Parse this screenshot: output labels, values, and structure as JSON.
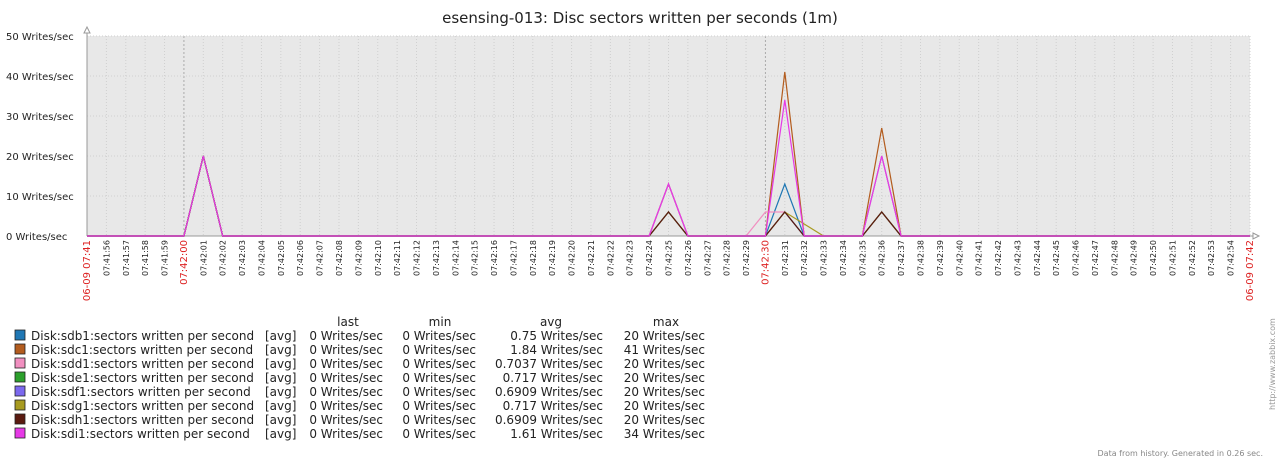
{
  "chart_data": {
    "type": "line",
    "title": "esensing-013: Disc sectors written per seconds (1m)",
    "ylabel_unit": "Writes/sec",
    "ylim": [
      0,
      50
    ],
    "yticks": [
      0,
      10,
      20,
      30,
      40,
      50
    ],
    "y_tick_labels": [
      "0 Writes/sec",
      "10 Writes/sec",
      "20 Writes/sec",
      "30 Writes/sec",
      "40 Writes/sec",
      "50 Writes/sec"
    ],
    "grid": true,
    "x": [
      "07:41:55",
      "07:41:56",
      "07:41:57",
      "07:41:58",
      "07:41:59",
      "07:42:00",
      "07:42:01",
      "07:42:02",
      "07:42:03",
      "07:42:04",
      "07:42:05",
      "07:42:06",
      "07:42:07",
      "07:42:08",
      "07:42:09",
      "07:42:10",
      "07:42:11",
      "07:42:12",
      "07:42:13",
      "07:42:14",
      "07:42:15",
      "07:42:16",
      "07:42:17",
      "07:42:18",
      "07:42:19",
      "07:42:20",
      "07:42:21",
      "07:42:22",
      "07:42:23",
      "07:42:24",
      "07:42:25",
      "07:42:26",
      "07:42:27",
      "07:42:28",
      "07:42:29",
      "07:42:30",
      "07:42:31",
      "07:42:32",
      "07:42:33",
      "07:42:34",
      "07:42:35",
      "07:42:36",
      "07:42:37",
      "07:42:38",
      "07:42:39",
      "07:42:40",
      "07:42:41",
      "07:42:42",
      "07:42:43",
      "07:42:44",
      "07:42:45",
      "07:42:46",
      "07:42:47",
      "07:42:48",
      "07:42:49",
      "07:42:50",
      "07:42:51",
      "07:42:52",
      "07:42:53",
      "07:42:54",
      "07:42:55"
    ],
    "x_tick_labels": [
      "06-09 07:41",
      "07:41:56",
      "07:41:57",
      "07:41:58",
      "07:41:59",
      "07:42:00",
      "07:42:01",
      "07:42:02",
      "07:42:03",
      "07:42:04",
      "07:42:05",
      "07:42:06",
      "07:42:07",
      "07:42:08",
      "07:42:09",
      "07:42:10",
      "07:42:11",
      "07:42:12",
      "07:42:13",
      "07:42:14",
      "07:42:15",
      "07:42:16",
      "07:42:17",
      "07:42:18",
      "07:42:19",
      "07:42:20",
      "07:42:21",
      "07:42:22",
      "07:42:23",
      "07:42:24",
      "07:42:25",
      "07:42:26",
      "07:42:27",
      "07:42:28",
      "07:42:29",
      "07:42:30",
      "07:42:31",
      "07:42:32",
      "07:42:33",
      "07:42:34",
      "07:42:35",
      "07:42:36",
      "07:42:37",
      "07:42:38",
      "07:42:39",
      "07:42:40",
      "07:42:41",
      "07:42:42",
      "07:42:43",
      "07:42:44",
      "07:42:45",
      "07:42:46",
      "07:42:47",
      "07:42:48",
      "07:42:49",
      "07:42:50",
      "07:42:51",
      "07:42:52",
      "07:42:53",
      "07:42:54",
      "06-09 07:42"
    ],
    "red_x_labels": [
      "06-09 07:41",
      "07:42:00",
      "07:42:30",
      "06-09 07:42"
    ],
    "series": [
      {
        "name": "Disk:sdb1:sectors written per second",
        "color": "#1f77b4",
        "values": [
          0,
          0,
          0,
          0,
          0,
          0,
          20,
          0,
          0,
          0,
          0,
          0,
          0,
          0,
          0,
          0,
          0,
          0,
          0,
          0,
          0,
          0,
          0,
          0,
          0,
          0,
          0,
          0,
          0,
          0,
          13,
          0,
          0,
          0,
          0,
          0,
          13,
          0,
          0,
          0,
          0,
          20,
          0,
          0,
          0,
          0,
          0,
          0,
          0,
          0,
          0,
          0,
          0,
          0,
          0,
          0,
          0,
          0,
          0,
          0,
          0
        ]
      },
      {
        "name": "Disk:sdc1:sectors written per second",
        "color": "#b35c1e",
        "values": [
          0,
          0,
          0,
          0,
          0,
          0,
          20,
          0,
          0,
          0,
          0,
          0,
          0,
          0,
          0,
          0,
          0,
          0,
          0,
          0,
          0,
          0,
          0,
          0,
          0,
          0,
          0,
          0,
          0,
          0,
          13,
          0,
          0,
          0,
          0,
          0,
          41,
          0,
          0,
          0,
          0,
          27,
          0,
          0,
          0,
          0,
          0,
          0,
          0,
          0,
          0,
          0,
          0,
          0,
          0,
          0,
          0,
          0,
          0,
          0,
          0
        ]
      },
      {
        "name": "Disk:sdd1:sectors written per second",
        "color": "#f18fc0",
        "values": [
          0,
          0,
          0,
          0,
          0,
          0,
          20,
          0,
          0,
          0,
          0,
          0,
          0,
          0,
          0,
          0,
          0,
          0,
          0,
          0,
          0,
          0,
          0,
          0,
          0,
          0,
          0,
          0,
          0,
          0,
          13,
          0,
          0,
          0,
          0,
          6,
          6,
          0,
          0,
          0,
          0,
          20,
          0,
          0,
          0,
          0,
          0,
          0,
          0,
          0,
          0,
          0,
          0,
          0,
          0,
          0,
          0,
          0,
          0,
          0,
          0
        ]
      },
      {
        "name": "Disk:sde1:sectors written per second",
        "color": "#2ca02c",
        "values": [
          0,
          0,
          0,
          0,
          0,
          0,
          20,
          0,
          0,
          0,
          0,
          0,
          0,
          0,
          0,
          0,
          0,
          0,
          0,
          0,
          0,
          0,
          0,
          0,
          0,
          0,
          0,
          0,
          0,
          0,
          6,
          0,
          0,
          0,
          0,
          0,
          6,
          0,
          0,
          0,
          0,
          6,
          0,
          0,
          0,
          0,
          0,
          0,
          0,
          0,
          0,
          0,
          0,
          0,
          0,
          0,
          0,
          0,
          0,
          0,
          0
        ]
      },
      {
        "name": "Disk:sdf1:sectors written per second",
        "color": "#7b68ee",
        "values": [
          0,
          0,
          0,
          0,
          0,
          0,
          20,
          0,
          0,
          0,
          0,
          0,
          0,
          0,
          0,
          0,
          0,
          0,
          0,
          0,
          0,
          0,
          0,
          0,
          0,
          0,
          0,
          0,
          0,
          0,
          6,
          0,
          0,
          0,
          0,
          0,
          6,
          0,
          0,
          0,
          0,
          6,
          0,
          0,
          0,
          0,
          0,
          0,
          0,
          0,
          0,
          0,
          0,
          0,
          0,
          0,
          0,
          0,
          0,
          0,
          0
        ]
      },
      {
        "name": "Disk:sdg1:sectors written per second",
        "color": "#a89b20",
        "values": [
          0,
          0,
          0,
          0,
          0,
          0,
          20,
          0,
          0,
          0,
          0,
          0,
          0,
          0,
          0,
          0,
          0,
          0,
          0,
          0,
          0,
          0,
          0,
          0,
          0,
          0,
          0,
          0,
          0,
          0,
          6,
          0,
          0,
          0,
          0,
          0,
          6,
          3,
          0,
          0,
          0,
          6,
          0,
          0,
          0,
          0,
          0,
          0,
          0,
          0,
          0,
          0,
          0,
          0,
          0,
          0,
          0,
          0,
          0,
          0,
          0
        ]
      },
      {
        "name": "Disk:sdh1:sectors written per second",
        "color": "#5a1a10",
        "values": [
          0,
          0,
          0,
          0,
          0,
          0,
          20,
          0,
          0,
          0,
          0,
          0,
          0,
          0,
          0,
          0,
          0,
          0,
          0,
          0,
          0,
          0,
          0,
          0,
          0,
          0,
          0,
          0,
          0,
          0,
          6,
          0,
          0,
          0,
          0,
          0,
          6,
          0,
          0,
          0,
          0,
          6,
          0,
          0,
          0,
          0,
          0,
          0,
          0,
          0,
          0,
          0,
          0,
          0,
          0,
          0,
          0,
          0,
          0,
          0,
          0
        ]
      },
      {
        "name": "Disk:sdi1:sectors written per second",
        "color": "#e639e6",
        "values": [
          0,
          0,
          0,
          0,
          0,
          0,
          20,
          0,
          0,
          0,
          0,
          0,
          0,
          0,
          0,
          0,
          0,
          0,
          0,
          0,
          0,
          0,
          0,
          0,
          0,
          0,
          0,
          0,
          0,
          0,
          13,
          0,
          0,
          0,
          0,
          0,
          34,
          0,
          0,
          0,
          0,
          20,
          0,
          0,
          0,
          0,
          0,
          0,
          0,
          0,
          0,
          0,
          0,
          0,
          0,
          0,
          0,
          0,
          0,
          0,
          0
        ]
      }
    ]
  },
  "legend": {
    "headers": {
      "last": "last",
      "min": "min",
      "avg": "avg",
      "max": "max"
    },
    "rows": [
      {
        "name": "Disk:sdb1:sectors written per second",
        "func": "[avg]",
        "last": "0 Writes/sec",
        "min": "0 Writes/sec",
        "avg": "0.75 Writes/sec",
        "max": "20 Writes/sec",
        "color": "#1f77b4"
      },
      {
        "name": "Disk:sdc1:sectors written per second",
        "func": "[avg]",
        "last": "0 Writes/sec",
        "min": "0 Writes/sec",
        "avg": "1.84 Writes/sec",
        "max": "41 Writes/sec",
        "color": "#b35c1e"
      },
      {
        "name": "Disk:sdd1:sectors written per second",
        "func": "[avg]",
        "last": "0 Writes/sec",
        "min": "0 Writes/sec",
        "avg": "0.7037 Writes/sec",
        "max": "20 Writes/sec",
        "color": "#f18fc0"
      },
      {
        "name": "Disk:sde1:sectors written per second",
        "func": "[avg]",
        "last": "0 Writes/sec",
        "min": "0 Writes/sec",
        "avg": "0.717 Writes/sec",
        "max": "20 Writes/sec",
        "color": "#2ca02c"
      },
      {
        "name": "Disk:sdf1:sectors written per second",
        "func": "[avg]",
        "last": "0 Writes/sec",
        "min": "0 Writes/sec",
        "avg": "0.6909 Writes/sec",
        "max": "20 Writes/sec",
        "color": "#7b68ee"
      },
      {
        "name": "Disk:sdg1:sectors written per second",
        "func": "[avg]",
        "last": "0 Writes/sec",
        "min": "0 Writes/sec",
        "avg": "0.717 Writes/sec",
        "max": "20 Writes/sec",
        "color": "#a89b20"
      },
      {
        "name": "Disk:sdh1:sectors written per second",
        "func": "[avg]",
        "last": "0 Writes/sec",
        "min": "0 Writes/sec",
        "avg": "0.6909 Writes/sec",
        "max": "20 Writes/sec",
        "color": "#5a1a10"
      },
      {
        "name": "Disk:sdi1:sectors written per second",
        "func": "[avg]",
        "last": "0 Writes/sec",
        "min": "0 Writes/sec",
        "avg": "1.61 Writes/sec",
        "max": "34 Writes/sec",
        "color": "#e639e6"
      }
    ]
  },
  "footer": "Data from history. Generated in 0.26 sec.",
  "watermark": "http://www.zabbix.com"
}
